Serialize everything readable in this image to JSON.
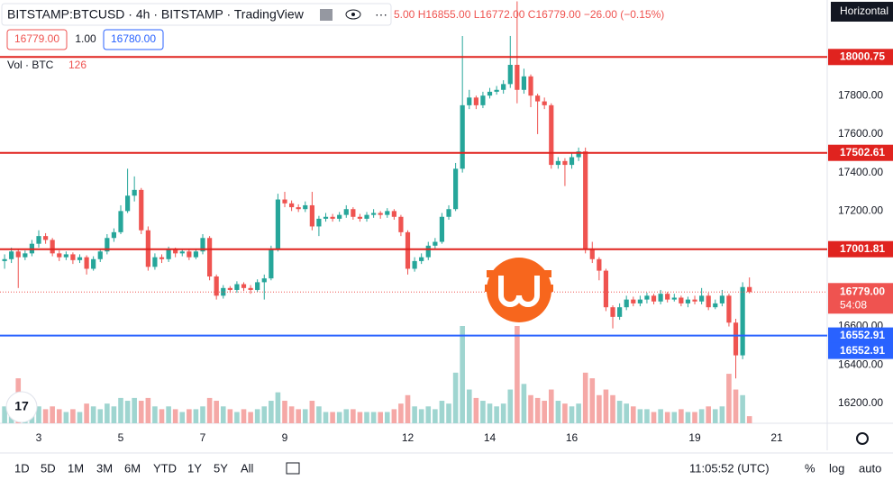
{
  "ui": {
    "symbol": "BITSTAMP:BTCUSD · 4h · BITSTAMP · TradingView",
    "ohlc": "5.00  H16855.00  L16772.00  C16779.00  −26.00 (−0.15%)",
    "bid": "16779.00",
    "spread": "1.00",
    "ask": "16780.00",
    "vol_label": "Vol · BTC",
    "tooltip": "Horizontal",
    "ranges": [
      "1D",
      "5D",
      "1M",
      "3M",
      "6M",
      "YTD",
      "1Y",
      "5Y",
      "All"
    ],
    "clock": "11:05:52 (UTC)",
    "percent": "%",
    "log": "log",
    "auto": "auto"
  },
  "chart_data": {
    "type": "candlestick",
    "grid": false,
    "up_color": "#26a69a",
    "down_color": "#ef5350",
    "volume_up_color": "#9fd5d0",
    "volume_down_color": "#f5a8a6",
    "x": [
      2.167,
      2.333,
      2.5,
      2.667,
      2.833,
      3,
      3.167,
      3.333,
      3.5,
      3.667,
      3.833,
      4,
      4.167,
      4.333,
      4.5,
      4.667,
      4.833,
      5,
      5.167,
      5.333,
      5.5,
      5.667,
      5.833,
      6,
      6.167,
      6.333,
      6.5,
      6.667,
      6.833,
      7,
      7.167,
      7.333,
      7.5,
      7.667,
      7.833,
      8,
      8.167,
      8.333,
      8.5,
      8.667,
      8.833,
      9,
      9.167,
      9.333,
      9.5,
      9.667,
      9.833,
      10,
      10.167,
      10.333,
      10.5,
      10.667,
      10.833,
      11,
      11.167,
      11.333,
      11.5,
      11.667,
      11.833,
      12,
      12.167,
      12.333,
      12.5,
      12.667,
      12.833,
      13,
      13.167,
      13.333,
      13.5,
      13.667,
      13.833,
      14,
      14.167,
      14.333,
      14.5,
      14.667,
      14.833,
      15,
      15.167,
      15.333,
      15.5,
      15.667,
      15.833,
      16,
      16.167,
      16.333,
      16.5,
      16.667,
      16.833,
      17,
      17.167,
      17.333,
      17.5,
      17.667,
      17.833,
      18,
      18.167,
      18.333,
      18.5,
      18.667,
      18.833,
      19,
      19.167,
      19.333,
      19.5,
      19.667,
      19.833,
      20,
      20.167,
      20.333
    ],
    "open": [
      16940,
      16950,
      16990,
      16960,
      16980,
      17030,
      17070,
      17050,
      16980,
      16960,
      16975,
      16945,
      16960,
      16900,
      16950,
      16990,
      17060,
      17090,
      17200,
      17280,
      17310,
      17100,
      16910,
      16960,
      16950,
      17000,
      16980,
      16990,
      16960,
      16990,
      17060,
      16860,
      16760,
      16800,
      16790,
      16820,
      16800,
      16790,
      16830,
      16850,
      17000,
      17260,
      17240,
      17220,
      17210,
      17230,
      17120,
      17160,
      17170,
      17160,
      17180,
      17210,
      17170,
      17160,
      17180,
      17190,
      17180,
      17200,
      17170,
      17090,
      16900,
      16940,
      16960,
      17020,
      17040,
      17170,
      17210,
      17420,
      17750,
      17790,
      17750,
      17800,
      17820,
      17830,
      17860,
      17960,
      17830,
      17900,
      17800,
      17770,
      17750,
      17440,
      17460,
      17440,
      17480,
      17510,
      17000,
      16950,
      16890,
      16700,
      16650,
      16700,
      16740,
      16720,
      16740,
      16760,
      16730,
      16770,
      16740,
      16750,
      16720,
      16740,
      16730,
      16760,
      16700,
      16720,
      16760,
      16620,
      16450,
      16805
    ],
    "high": [
      16975,
      17010,
      17000,
      16995,
      17050,
      17100,
      17085,
      17060,
      16995,
      16990,
      16985,
      16975,
      16970,
      16965,
      17005,
      17080,
      17110,
      17230,
      17420,
      17380,
      17320,
      17120,
      16980,
      16975,
      17015,
      17010,
      17005,
      17000,
      17005,
      17080,
      17070,
      16870,
      16815,
      16810,
      16835,
      16830,
      16815,
      16845,
      16870,
      17020,
      17290,
      17300,
      17255,
      17235,
      17250,
      17300,
      17175,
      17190,
      17185,
      17195,
      17230,
      17220,
      17185,
      17195,
      17210,
      17200,
      17215,
      17210,
      17180,
      17100,
      16960,
      16980,
      17040,
      17060,
      17190,
      17230,
      17450,
      18110,
      17830,
      17800,
      17820,
      17840,
      17850,
      17880,
      18110,
      18290,
      17940,
      17910,
      17810,
      17790,
      17760,
      17480,
      17475,
      17500,
      17530,
      17530,
      17040,
      16960,
      16900,
      16710,
      16720,
      16760,
      16755,
      16760,
      16775,
      16770,
      16790,
      16780,
      16770,
      16760,
      16755,
      16760,
      16800,
      16775,
      16740,
      16790,
      16770,
      16640,
      16830,
      16855
    ],
    "low": [
      16900,
      16930,
      16800,
      16945,
      16965,
      17010,
      17030,
      16965,
      16940,
      16945,
      16925,
      16930,
      16870,
      16890,
      16935,
      16975,
      17040,
      17080,
      17190,
      17250,
      17080,
      16890,
      16895,
      16930,
      16935,
      16960,
      16965,
      16945,
      16950,
      16975,
      16840,
      16740,
      16745,
      16775,
      16775,
      16785,
      16770,
      16780,
      16740,
      16840,
      16990,
      17220,
      17200,
      17195,
      17195,
      17100,
      17070,
      17145,
      17145,
      17145,
      17165,
      17155,
      17145,
      17145,
      17165,
      17160,
      17165,
      17155,
      17070,
      16870,
      16885,
      16925,
      16945,
      17005,
      17030,
      17155,
      17200,
      17400,
      17730,
      17730,
      17735,
      17785,
      17805,
      17810,
      17840,
      17760,
      17810,
      17740,
      17600,
      17730,
      17420,
      17420,
      17330,
      17420,
      17460,
      16980,
      16930,
      16840,
      16680,
      16590,
      16635,
      16685,
      16705,
      16705,
      16720,
      16715,
      16715,
      16725,
      16730,
      16705,
      16700,
      16715,
      16715,
      16685,
      16690,
      16705,
      16600,
      16330,
      16430,
      16772
    ],
    "close": [
      16950,
      16990,
      16960,
      16980,
      17030,
      17070,
      17050,
      16980,
      16960,
      16975,
      16945,
      16960,
      16900,
      16950,
      16990,
      17060,
      17090,
      17200,
      17280,
      17310,
      17100,
      16910,
      16960,
      16950,
      17000,
      16980,
      16990,
      16960,
      16990,
      17060,
      16860,
      16760,
      16800,
      16790,
      16820,
      16800,
      16790,
      16830,
      16850,
      17000,
      17260,
      17240,
      17220,
      17210,
      17230,
      17120,
      17160,
      17170,
      17160,
      17180,
      17210,
      17170,
      17160,
      17180,
      17190,
      17180,
      17200,
      17170,
      17090,
      16900,
      16940,
      16960,
      17020,
      17040,
      17170,
      17210,
      17420,
      17750,
      17790,
      17750,
      17800,
      17820,
      17830,
      17860,
      17960,
      17830,
      17900,
      17800,
      17770,
      17750,
      17440,
      17460,
      17440,
      17480,
      17510,
      17000,
      16950,
      16890,
      16700,
      16650,
      16700,
      16740,
      16720,
      16740,
      16760,
      16730,
      16770,
      16740,
      16750,
      16720,
      16740,
      16730,
      16760,
      16700,
      16720,
      16760,
      16620,
      16450,
      16805,
      16779
    ],
    "volume": [
      300,
      250,
      800,
      300,
      350,
      300,
      250,
      300,
      250,
      200,
      250,
      200,
      350,
      300,
      250,
      350,
      300,
      450,
      400,
      450,
      400,
      450,
      300,
      250,
      300,
      250,
      200,
      250,
      250,
      300,
      450,
      400,
      300,
      250,
      200,
      250,
      200,
      250,
      300,
      400,
      550,
      400,
      300,
      250,
      250,
      400,
      300,
      200,
      200,
      200,
      250,
      250,
      200,
      200,
      200,
      200,
      200,
      250,
      350,
      500,
      300,
      250,
      300,
      250,
      400,
      350,
      900,
      1730,
      600,
      450,
      400,
      350,
      300,
      350,
      600,
      1730,
      700,
      500,
      450,
      400,
      600,
      400,
      350,
      300,
      350,
      900,
      800,
      500,
      600,
      500,
      400,
      350,
      300,
      250,
      250,
      200,
      250,
      200,
      200,
      250,
      200,
      200,
      250,
      300,
      250,
      300,
      880,
      600,
      500,
      126
    ],
    "xlim": [
      2.055,
      22.23
    ],
    "xticks": [
      3,
      5,
      7,
      9,
      12,
      14,
      16,
      19,
      21
    ],
    "ylim": [
      16097,
      18297
    ],
    "yticks": [
      {
        "value": 16200,
        "label": "16200.00"
      },
      {
        "value": 16400,
        "label": "16400.00"
      },
      {
        "value": 16600,
        "label": "16600.00"
      },
      {
        "value": 17200,
        "label": "17200.00"
      },
      {
        "value": 17400,
        "label": "17400.00"
      },
      {
        "value": 17600,
        "label": "17600.00"
      },
      {
        "value": 17800,
        "label": "17800.00"
      }
    ],
    "horizontal_lines": [
      {
        "value": 18000.75,
        "label": "18000.75",
        "color": "#e0231f"
      },
      {
        "value": 17502.61,
        "label": "17502.61",
        "color": "#e0231f"
      },
      {
        "value": 17001.81,
        "label": "17001.81",
        "color": "#e0231f"
      },
      {
        "value": 16552.91,
        "label": "16552.91",
        "color": "#2962ff"
      }
    ],
    "cursor_price": {
      "value": 16552.91,
      "label": "16552.91"
    },
    "last_price": {
      "value": 16779,
      "label": "16779.00",
      "countdown": "54:08"
    }
  }
}
